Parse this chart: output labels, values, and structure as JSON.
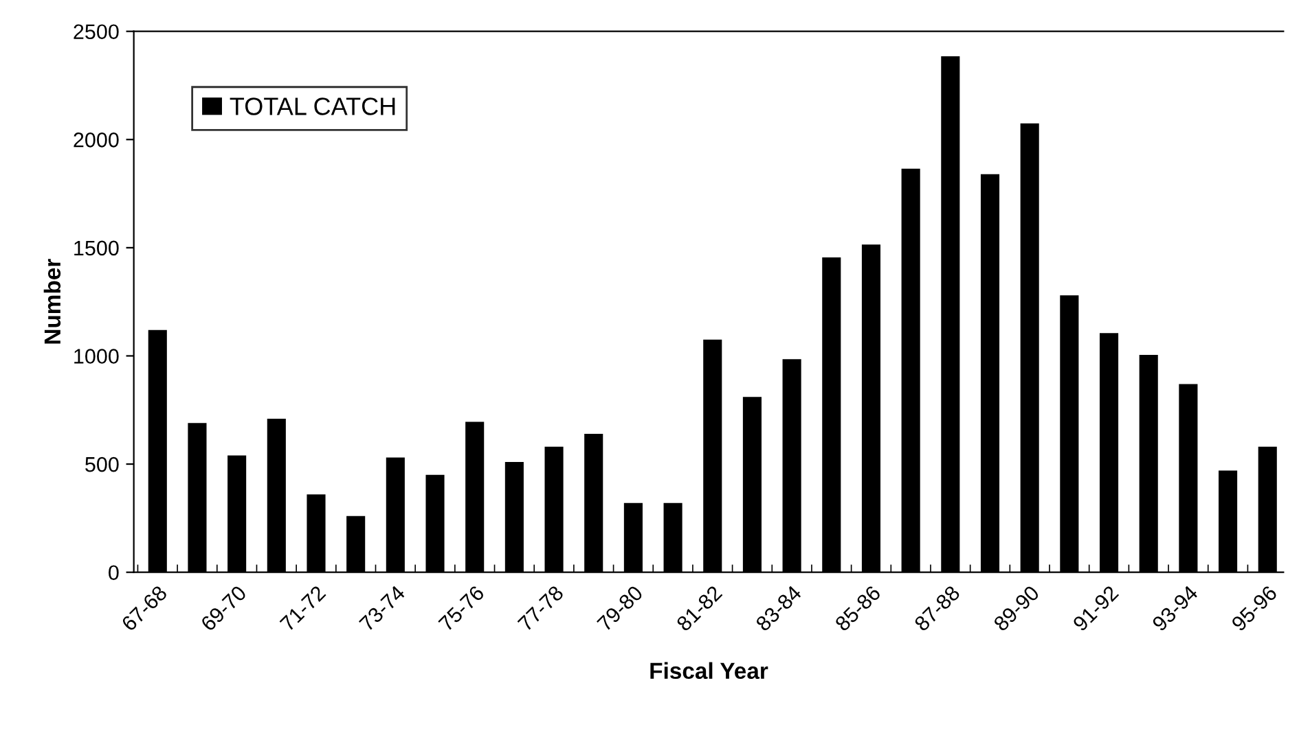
{
  "chart_data": {
    "type": "bar",
    "xlabel": "Fiscal Year",
    "ylabel": "Number",
    "categories": [
      "67-68",
      null,
      "69-70",
      null,
      "71-72",
      null,
      "73-74",
      null,
      "75-76",
      null,
      "77-78",
      null,
      "79-80",
      null,
      "81-82",
      null,
      "83-84",
      null,
      "85-86",
      null,
      "87-88",
      null,
      "89-90",
      null,
      "91-92",
      null,
      "93-94",
      null,
      "95-96"
    ],
    "series": [
      {
        "name": "TOTAL CATCH",
        "color": "#000000",
        "values": [
          1120,
          690,
          540,
          710,
          360,
          260,
          530,
          450,
          695,
          510,
          580,
          640,
          320,
          320,
          1075,
          810,
          985,
          1455,
          1515,
          1865,
          2385,
          1840,
          2075,
          1280,
          1105,
          1005,
          870,
          470,
          580
        ]
      }
    ],
    "ylim": [
      0,
      2500
    ],
    "yticks": [
      0,
      500,
      1000,
      1500,
      2000,
      2500
    ],
    "grid": false,
    "legend": "top left"
  }
}
